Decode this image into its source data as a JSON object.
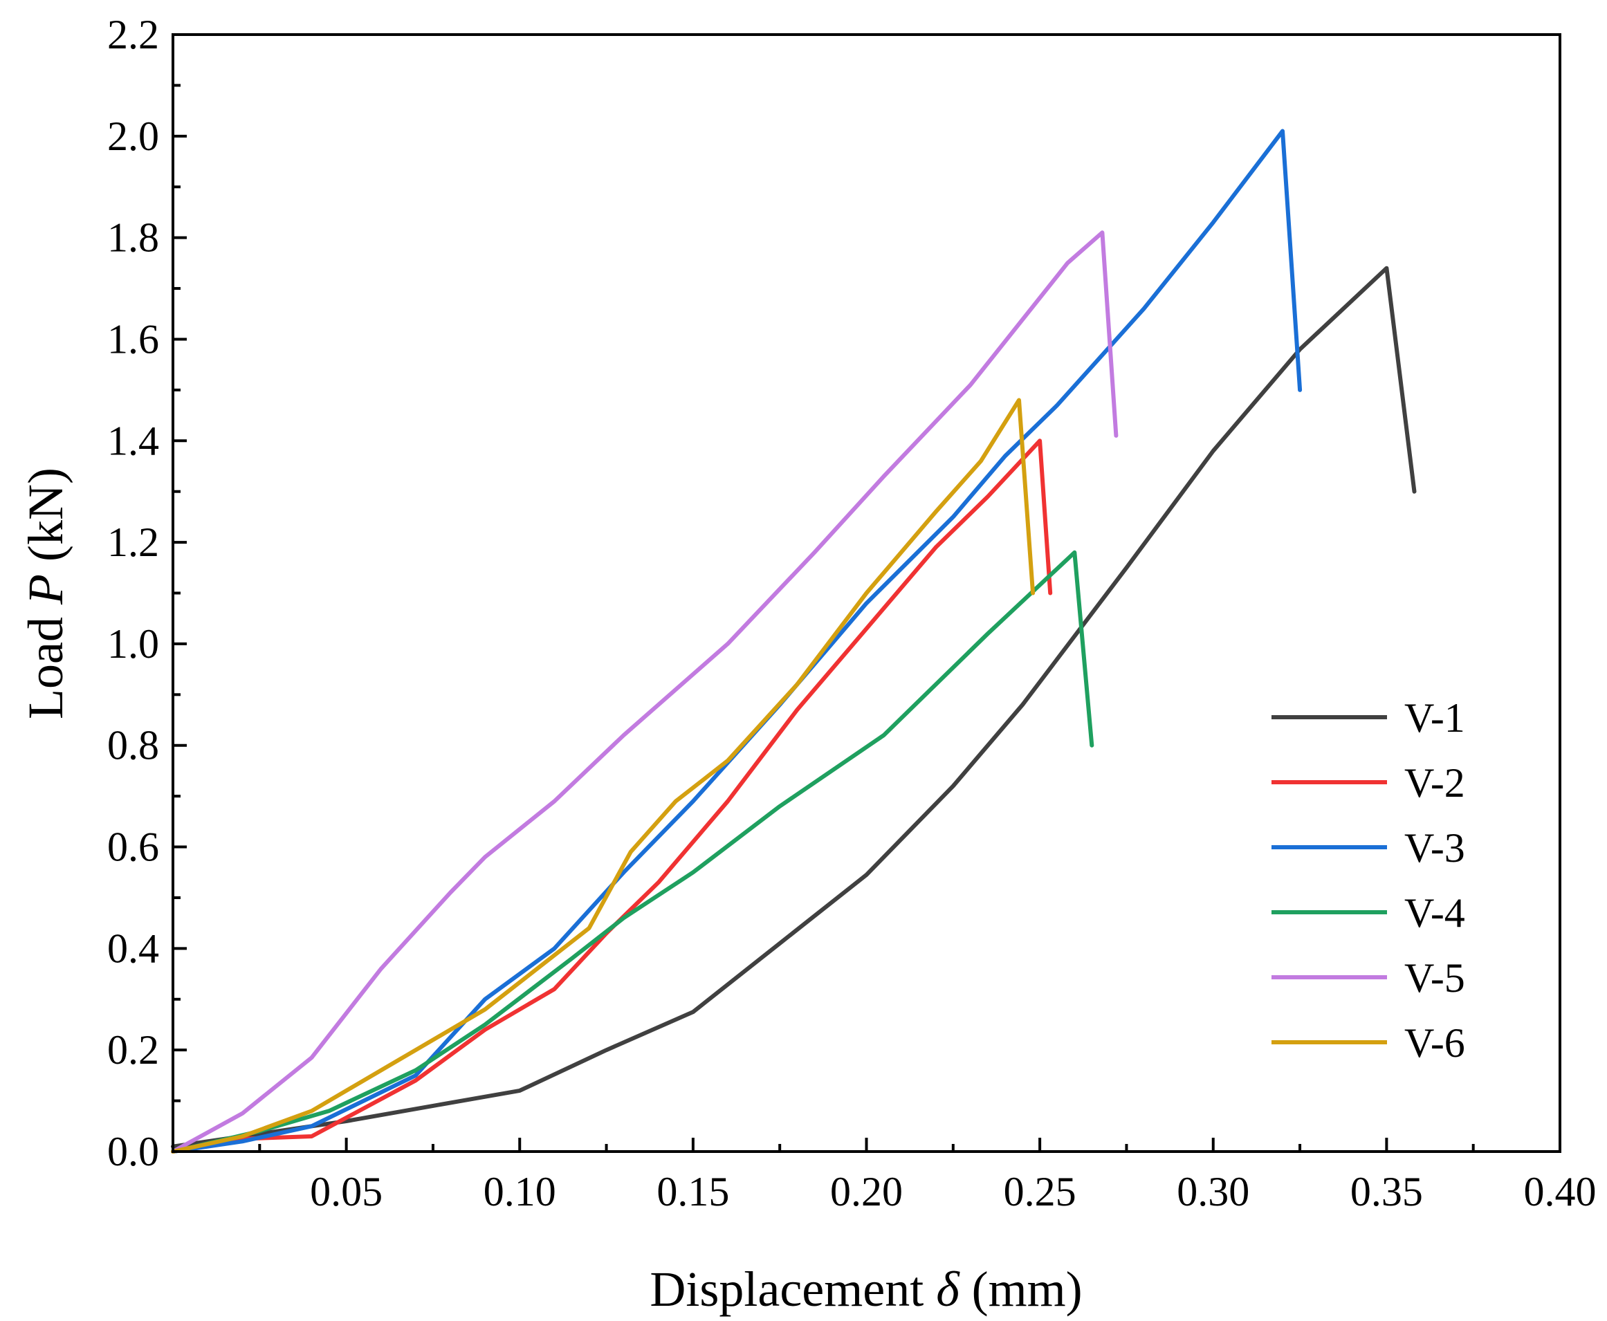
{
  "chart_data": {
    "type": "line",
    "title": "",
    "xlabel": {
      "prefix": "Displacement ",
      "symbol": "δ",
      "suffix": " (mm)"
    },
    "ylabel": {
      "prefix": "Load ",
      "symbol": "P",
      "suffix": " (kN)"
    },
    "xlim": [
      0.0,
      0.4
    ],
    "ylim": [
      0.0,
      2.2
    ],
    "x_ticks": [
      0.05,
      0.1,
      0.15,
      0.2,
      0.25,
      0.3,
      0.35,
      0.4
    ],
    "x_tick_labels": [
      "0.05",
      "0.10",
      "0.15",
      "0.20",
      "0.25",
      "0.30",
      "0.35",
      "0.40"
    ],
    "y_ticks": [
      0.0,
      0.2,
      0.4,
      0.6,
      0.8,
      1.0,
      1.2,
      1.4,
      1.6,
      1.8,
      2.0,
      2.2
    ],
    "y_tick_labels": [
      "0.0",
      "0.2",
      "0.4",
      "0.6",
      "0.8",
      "1.0",
      "1.2",
      "1.4",
      "1.6",
      "1.8",
      "2.0",
      "2.2"
    ],
    "grid": false,
    "legend_position": "bottom-right",
    "series": [
      {
        "name": "V-1",
        "color": "#404040",
        "points": [
          [
            0.0,
            0.01
          ],
          [
            0.02,
            0.03
          ],
          [
            0.05,
            0.06
          ],
          [
            0.075,
            0.09
          ],
          [
            0.1,
            0.12
          ],
          [
            0.125,
            0.2
          ],
          [
            0.15,
            0.275
          ],
          [
            0.175,
            0.41
          ],
          [
            0.2,
            0.545
          ],
          [
            0.225,
            0.72
          ],
          [
            0.245,
            0.88
          ],
          [
            0.275,
            1.15
          ],
          [
            0.3,
            1.38
          ],
          [
            0.325,
            1.58
          ],
          [
            0.35,
            1.74
          ],
          [
            0.358,
            1.3
          ]
        ]
      },
      {
        "name": "V-2",
        "color": "#f03232",
        "points": [
          [
            0.0,
            0.0
          ],
          [
            0.02,
            0.025
          ],
          [
            0.04,
            0.03
          ],
          [
            0.07,
            0.14
          ],
          [
            0.09,
            0.24
          ],
          [
            0.11,
            0.32
          ],
          [
            0.125,
            0.43
          ],
          [
            0.14,
            0.53
          ],
          [
            0.16,
            0.69
          ],
          [
            0.17,
            0.78
          ],
          [
            0.18,
            0.87
          ],
          [
            0.2,
            1.03
          ],
          [
            0.22,
            1.19
          ],
          [
            0.235,
            1.29
          ],
          [
            0.25,
            1.4
          ],
          [
            0.253,
            1.1
          ]
        ]
      },
      {
        "name": "V-3",
        "color": "#1a6fd6",
        "points": [
          [
            0.0,
            0.0
          ],
          [
            0.02,
            0.02
          ],
          [
            0.04,
            0.05
          ],
          [
            0.07,
            0.15
          ],
          [
            0.09,
            0.3
          ],
          [
            0.11,
            0.4
          ],
          [
            0.13,
            0.55
          ],
          [
            0.15,
            0.69
          ],
          [
            0.175,
            0.88
          ],
          [
            0.2,
            1.08
          ],
          [
            0.225,
            1.25
          ],
          [
            0.24,
            1.37
          ],
          [
            0.255,
            1.47
          ],
          [
            0.28,
            1.66
          ],
          [
            0.3,
            1.83
          ],
          [
            0.32,
            2.01
          ],
          [
            0.325,
            1.5
          ]
        ]
      },
      {
        "name": "V-4",
        "color": "#1fa05f",
        "points": [
          [
            0.0,
            0.0
          ],
          [
            0.025,
            0.04
          ],
          [
            0.045,
            0.08
          ],
          [
            0.07,
            0.16
          ],
          [
            0.09,
            0.25
          ],
          [
            0.115,
            0.38
          ],
          [
            0.13,
            0.46
          ],
          [
            0.15,
            0.55
          ],
          [
            0.175,
            0.68
          ],
          [
            0.205,
            0.82
          ],
          [
            0.235,
            1.02
          ],
          [
            0.26,
            1.18
          ],
          [
            0.265,
            0.8
          ]
        ]
      },
      {
        "name": "V-5",
        "color": "#c27be0",
        "points": [
          [
            0.0,
            0.0
          ],
          [
            0.02,
            0.075
          ],
          [
            0.04,
            0.185
          ],
          [
            0.06,
            0.36
          ],
          [
            0.08,
            0.51
          ],
          [
            0.09,
            0.58
          ],
          [
            0.11,
            0.69
          ],
          [
            0.13,
            0.82
          ],
          [
            0.16,
            1.0
          ],
          [
            0.185,
            1.18
          ],
          [
            0.205,
            1.33
          ],
          [
            0.23,
            1.51
          ],
          [
            0.258,
            1.75
          ],
          [
            0.268,
            1.81
          ],
          [
            0.272,
            1.41
          ]
        ]
      },
      {
        "name": "V-6",
        "color": "#d4a010",
        "points": [
          [
            0.0,
            0.0
          ],
          [
            0.02,
            0.03
          ],
          [
            0.04,
            0.08
          ],
          [
            0.065,
            0.18
          ],
          [
            0.09,
            0.28
          ],
          [
            0.12,
            0.44
          ],
          [
            0.132,
            0.59
          ],
          [
            0.145,
            0.69
          ],
          [
            0.16,
            0.77
          ],
          [
            0.18,
            0.92
          ],
          [
            0.2,
            1.1
          ],
          [
            0.22,
            1.26
          ],
          [
            0.233,
            1.36
          ],
          [
            0.244,
            1.48
          ],
          [
            0.248,
            1.1
          ]
        ]
      }
    ]
  }
}
